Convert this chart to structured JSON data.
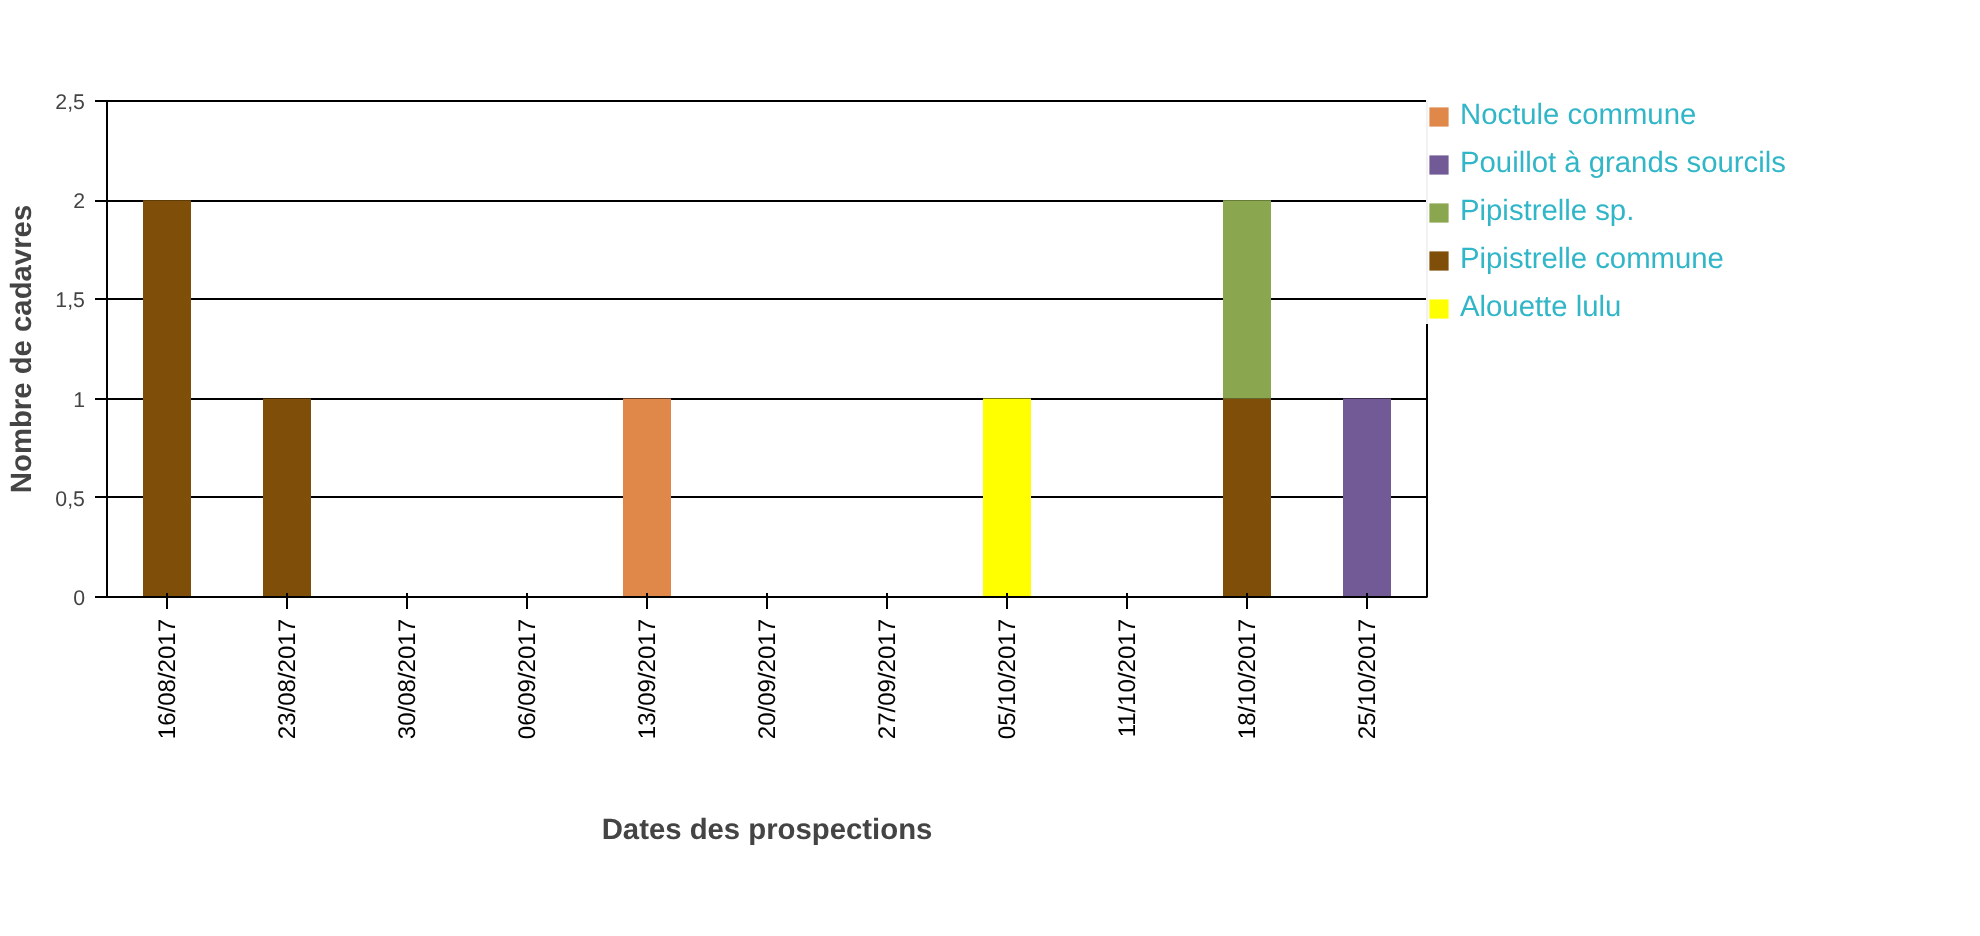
{
  "chart_data": {
    "type": "bar",
    "stacked": true,
    "xlabel": "Dates des prospections",
    "ylabel": "Nombre de cadavres",
    "categories": [
      "16/08/2017",
      "23/08/2017",
      "30/08/2017",
      "06/09/2017",
      "13/09/2017",
      "20/09/2017",
      "27/09/2017",
      "05/10/2017",
      "11/10/2017",
      "18/10/2017",
      "25/10/2017"
    ],
    "series": [
      {
        "name": "Alouette lulu",
        "color": "#ffff00",
        "values": [
          0,
          0,
          0,
          0,
          0,
          0,
          0,
          1,
          0,
          0,
          0
        ]
      },
      {
        "name": "Pipistrelle commune",
        "color": "#7f4f0a",
        "values": [
          2,
          1,
          0,
          0,
          0,
          0,
          0,
          0,
          0,
          1,
          0
        ]
      },
      {
        "name": "Pipistrelle sp.",
        "color": "#8aa64e",
        "values": [
          0,
          0,
          0,
          0,
          0,
          0,
          0,
          0,
          0,
          1,
          0
        ]
      },
      {
        "name": "Pouillot à grands sourcils",
        "color": "#725a96",
        "values": [
          0,
          0,
          0,
          0,
          0,
          0,
          0,
          0,
          0,
          0,
          1
        ]
      },
      {
        "name": "Noctule commune",
        "color": "#e0884a",
        "values": [
          0,
          0,
          0,
          0,
          1,
          0,
          0,
          0,
          0,
          0,
          0
        ]
      }
    ],
    "ylim": [
      0,
      2.5
    ],
    "yticks": [
      0,
      {
        "value": 0.5,
        "label": "0,5"
      },
      1,
      {
        "value": 1.5,
        "label": "1,5"
      },
      2,
      {
        "value": 2.5,
        "label": "2,5"
      }
    ],
    "grid": "y",
    "legend": "right"
  }
}
